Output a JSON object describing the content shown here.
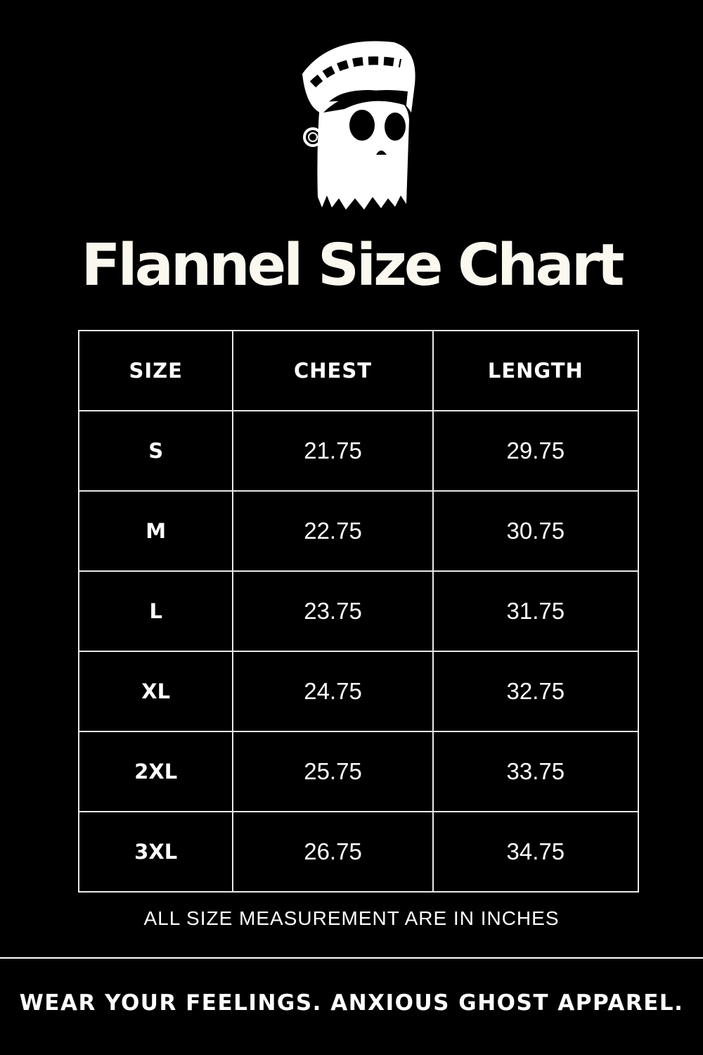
{
  "logo": {
    "icon": "ghost-beanie-logo"
  },
  "title": "Flannel Size Chart",
  "table": {
    "headers": [
      "SIZE",
      "CHEST",
      "LENGTH"
    ],
    "rows": [
      [
        "S",
        "21.75",
        "29.75"
      ],
      [
        "M",
        "22.75",
        "30.75"
      ],
      [
        "L",
        "23.75",
        "31.75"
      ],
      [
        "XL",
        "24.75",
        "32.75"
      ],
      [
        "2XL",
        "25.75",
        "33.75"
      ],
      [
        "3XL",
        "26.75",
        "34.75"
      ]
    ]
  },
  "note": "ALL SIZE MEASUREMENT ARE IN INCHES",
  "tagline": "WEAR YOUR FEELINGS. ANXIOUS GHOST APPAREL.",
  "colors": {
    "background": "#000000",
    "text": "#ffffff",
    "title": "#fbf8f0"
  }
}
